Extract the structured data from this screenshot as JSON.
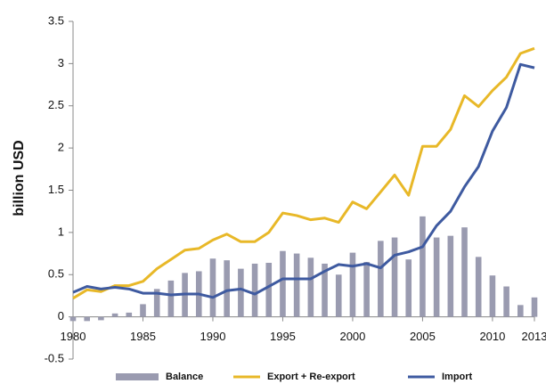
{
  "chart_data": {
    "type": "combo",
    "ylabel": "billion USD",
    "x": [
      1980,
      1981,
      1982,
      1983,
      1984,
      1985,
      1986,
      1987,
      1988,
      1989,
      1990,
      1991,
      1992,
      1993,
      1994,
      1995,
      1996,
      1997,
      1998,
      1999,
      2000,
      2001,
      2002,
      2003,
      2004,
      2005,
      2006,
      2007,
      2008,
      2009,
      2010,
      2011,
      2012,
      2013
    ],
    "series": [
      {
        "name": "Balance",
        "type": "bar",
        "color": "#9a9bb0",
        "values": [
          -0.05,
          -0.05,
          -0.04,
          0.04,
          0.05,
          0.15,
          0.33,
          0.43,
          0.52,
          0.54,
          0.69,
          0.67,
          0.57,
          0.63,
          0.64,
          0.78,
          0.75,
          0.7,
          0.63,
          0.5,
          0.76,
          0.65,
          0.9,
          0.94,
          0.68,
          1.19,
          0.94,
          0.96,
          1.06,
          0.71,
          0.49,
          0.36,
          0.14,
          0.23
        ]
      },
      {
        "name": "Export + Re-export",
        "type": "line",
        "color": "#e8b828",
        "values": [
          0.22,
          0.32,
          0.3,
          0.37,
          0.37,
          0.42,
          0.57,
          0.68,
          0.79,
          0.81,
          0.91,
          0.98,
          0.89,
          0.89,
          1.0,
          1.23,
          1.2,
          1.15,
          1.17,
          1.12,
          1.36,
          1.28,
          1.48,
          1.68,
          1.44,
          2.02,
          2.02,
          2.22,
          2.62,
          2.49,
          2.68,
          2.84,
          3.12,
          3.18
        ]
      },
      {
        "name": "Import",
        "type": "line",
        "color": "#3e5aa0",
        "values": [
          0.29,
          0.36,
          0.33,
          0.35,
          0.33,
          0.28,
          0.28,
          0.26,
          0.27,
          0.27,
          0.23,
          0.31,
          0.33,
          0.27,
          0.36,
          0.45,
          0.45,
          0.45,
          0.54,
          0.62,
          0.6,
          0.63,
          0.58,
          0.73,
          0.77,
          0.83,
          1.08,
          1.25,
          1.54,
          1.78,
          2.2,
          2.48,
          2.99,
          2.95
        ]
      }
    ],
    "xlim": [
      1980,
      2013
    ],
    "xticks": [
      1980,
      1985,
      1990,
      1995,
      2000,
      2005,
      2010,
      2013
    ],
    "ylim": [
      -0.5,
      3.5
    ],
    "yticks": [
      -0.5,
      0,
      0.5,
      1,
      1.5,
      2,
      2.5,
      3,
      3.5
    ],
    "grid": false,
    "legend": "bottom"
  }
}
